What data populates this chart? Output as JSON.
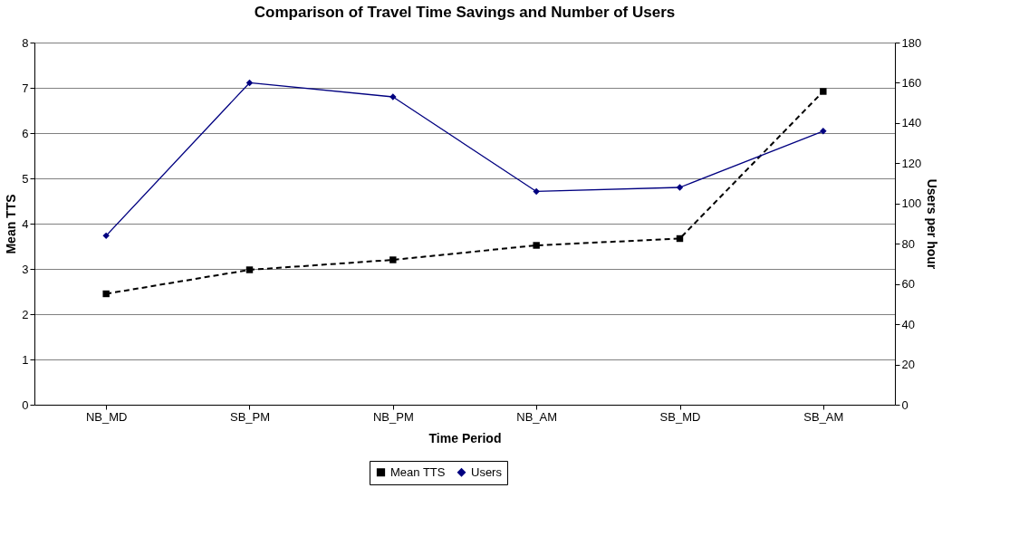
{
  "chart_data": {
    "type": "line",
    "title": "Comparison of Travel Time Savings and Number of Users",
    "xlabel": "Time Period",
    "ylabel": "Mean TTS",
    "y2label": "Users per hour",
    "categories": [
      "NB_MD",
      "SB_PM",
      "NB_PM",
      "NB_AM",
      "SB_MD",
      "SB_AM"
    ],
    "series": [
      {
        "name": "Mean TTS",
        "color": "#000000",
        "marker": "square",
        "line_style": "dashed",
        "values": [
          2.45,
          2.98,
          3.2,
          3.52,
          3.67,
          6.92
        ]
      },
      {
        "name": "Users",
        "color": "#000080",
        "marker": "diamond",
        "line_style": "solid",
        "axis": "y2",
        "values": [
          84,
          160,
          153,
          106,
          108,
          136
        ]
      }
    ],
    "ylim": [
      0,
      8
    ],
    "yticks": [
      0,
      1,
      2,
      3,
      4,
      5,
      6,
      7,
      8
    ],
    "y2lim": [
      0,
      180
    ],
    "y2ticks": [
      0,
      20,
      40,
      60,
      80,
      100,
      120,
      140,
      160,
      180
    ],
    "grid": "y",
    "legend": "bottom"
  }
}
